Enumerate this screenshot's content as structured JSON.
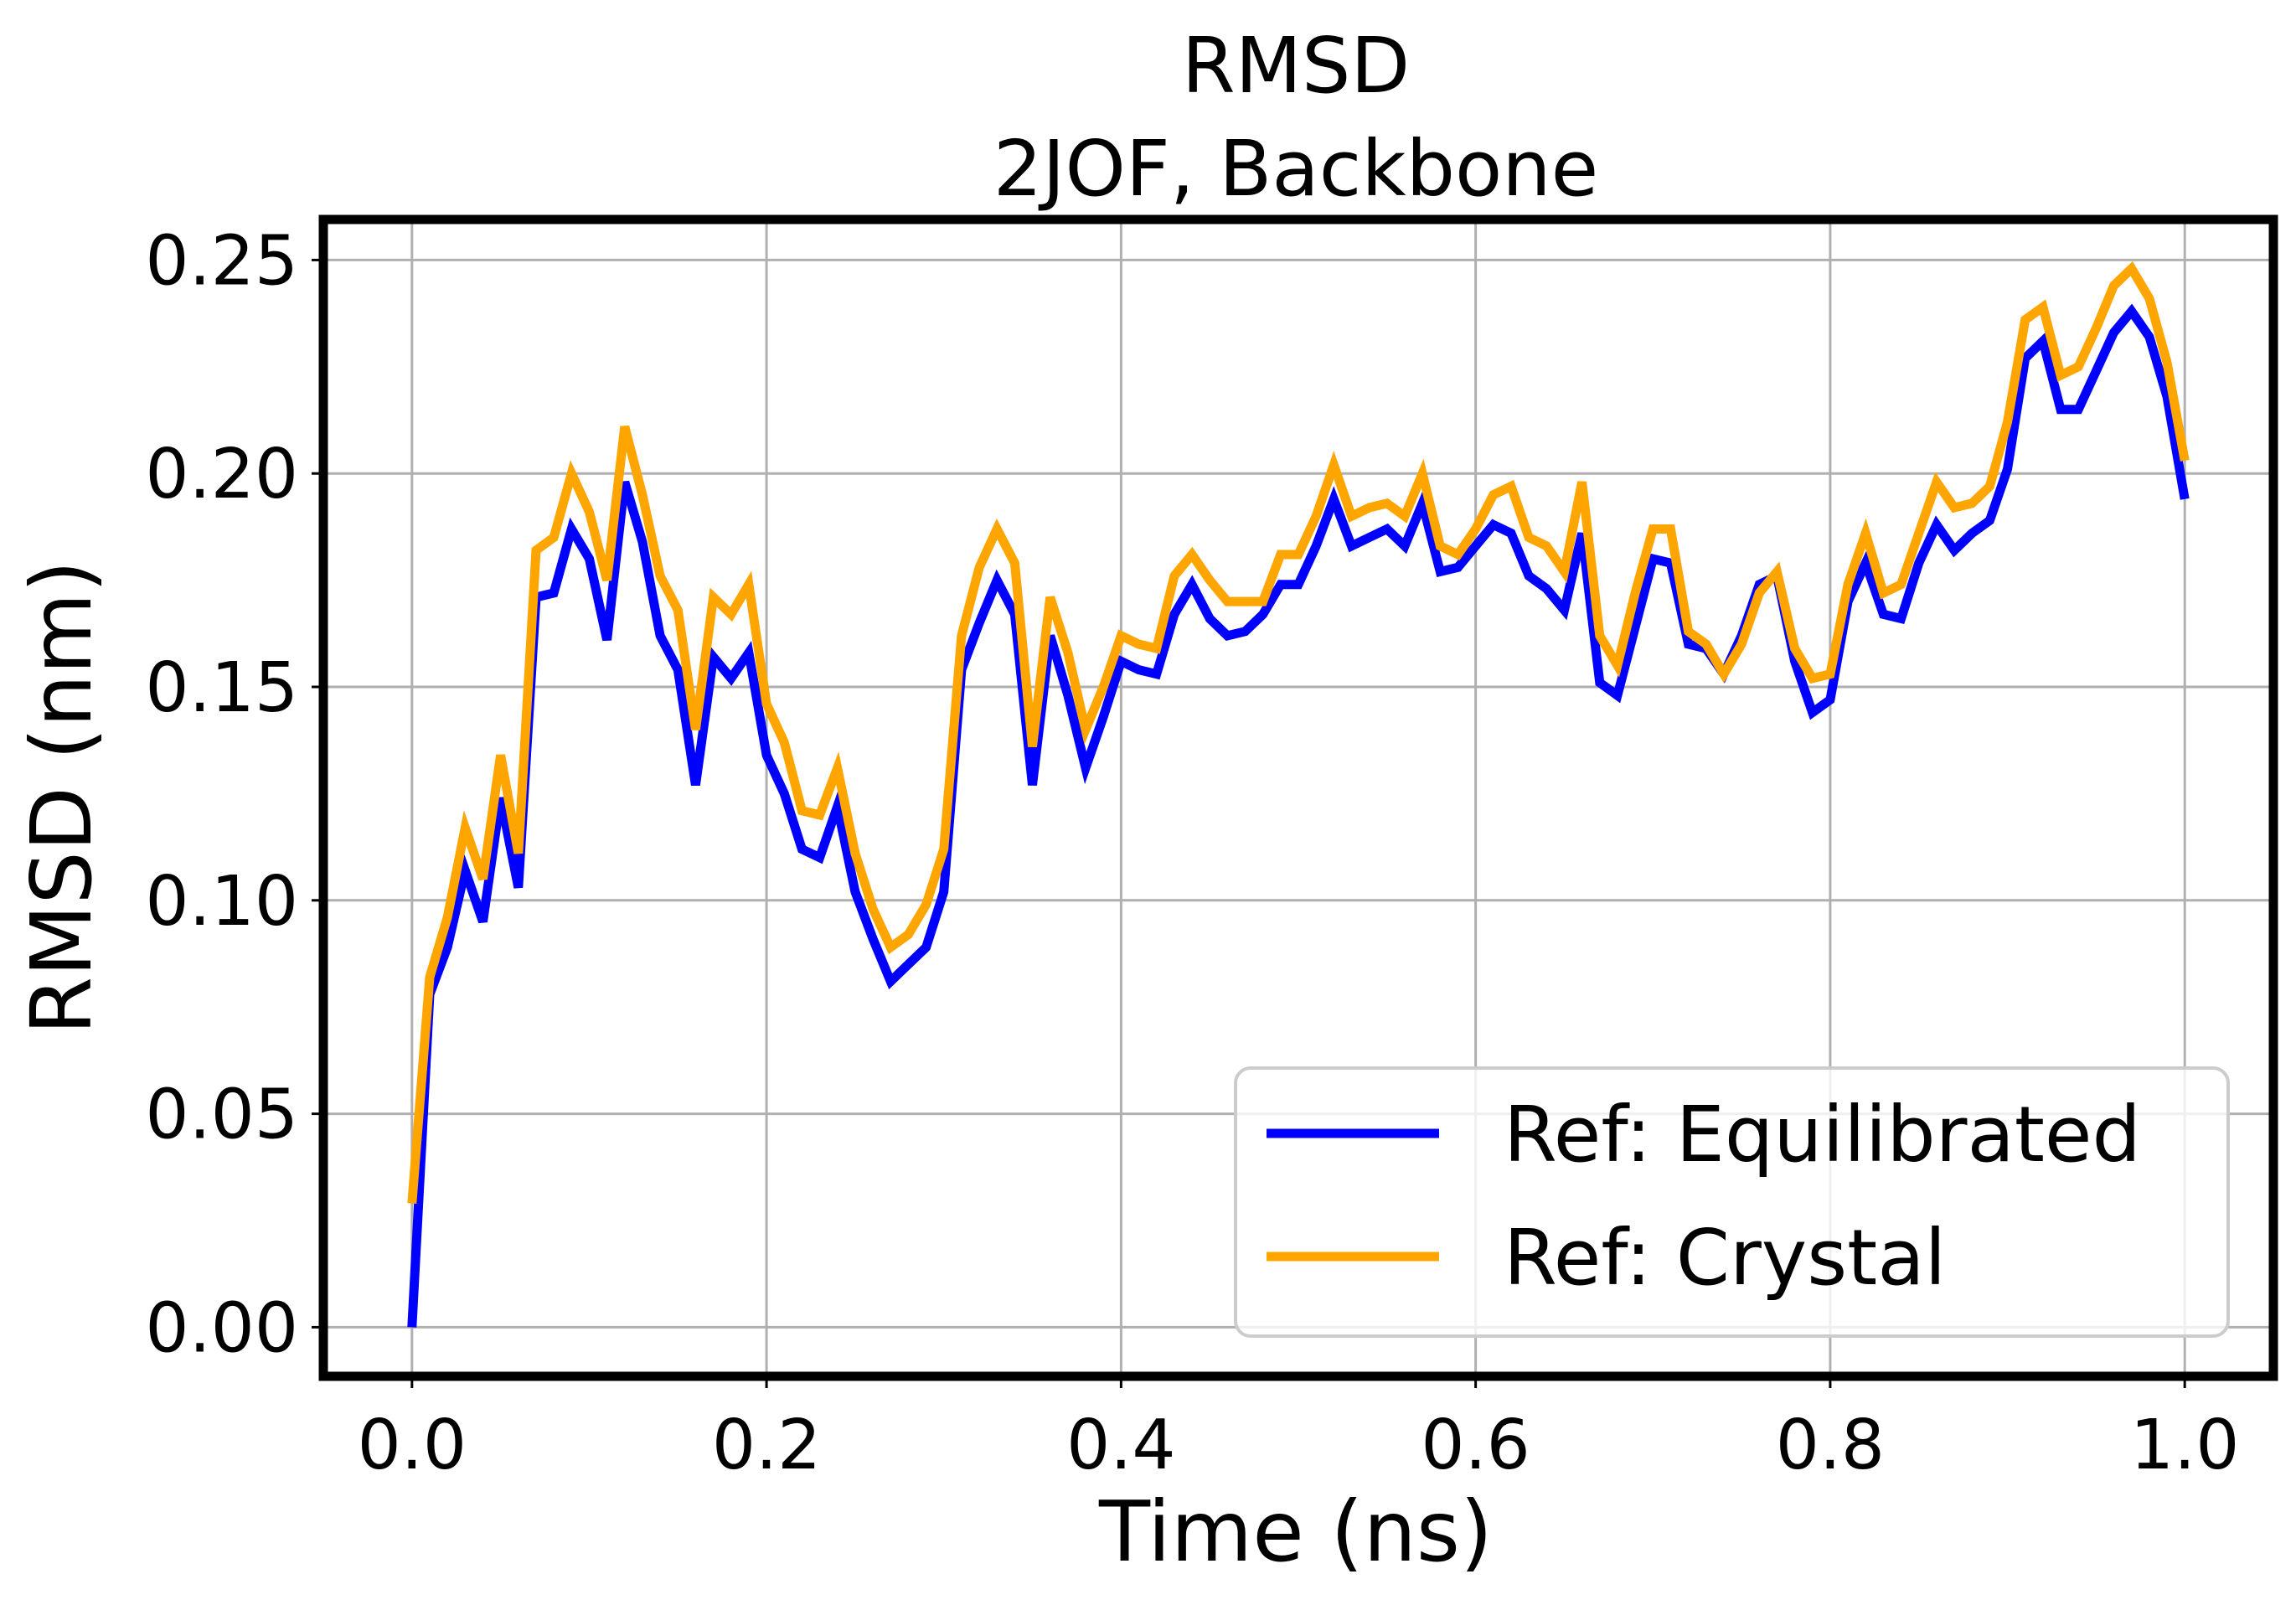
{
  "chart_data": {
    "type": "line",
    "title": "RMSD",
    "subtitle": "2JOF, Backbone",
    "xlabel": "Time (ns)",
    "ylabel": "RMSD (nm)",
    "xlim": [
      -0.05,
      1.05
    ],
    "ylim": [
      -0.0115,
      0.2595
    ],
    "xticks": [
      0.0,
      0.2,
      0.4,
      0.6,
      0.8,
      1.0
    ],
    "xtick_labels": [
      "0.0",
      "0.2",
      "0.4",
      "0.6",
      "0.8",
      "1.0"
    ],
    "yticks": [
      0.0,
      0.05,
      0.1,
      0.15,
      0.2,
      0.25
    ],
    "ytick_labels": [
      "0.00",
      "0.05",
      "0.10",
      "0.15",
      "0.20",
      "0.25"
    ],
    "grid": true,
    "legend_position": "lower-right",
    "x": [
      0.0,
      0.01,
      0.02,
      0.03,
      0.04,
      0.05,
      0.06,
      0.07,
      0.08,
      0.09,
      0.1,
      0.11,
      0.12,
      0.13,
      0.14,
      0.15,
      0.16,
      0.17,
      0.18,
      0.19,
      0.2,
      0.21,
      0.22,
      0.23,
      0.24,
      0.25,
      0.26,
      0.27,
      0.28,
      0.29,
      0.3,
      0.31,
      0.32,
      0.33,
      0.34,
      0.35,
      0.36,
      0.37,
      0.38,
      0.39,
      0.4,
      0.41,
      0.42,
      0.43,
      0.44,
      0.45,
      0.46,
      0.47,
      0.48,
      0.49,
      0.5,
      0.51,
      0.52,
      0.53,
      0.54,
      0.55,
      0.56,
      0.57,
      0.58,
      0.59,
      0.6,
      0.61,
      0.62,
      0.63,
      0.64,
      0.65,
      0.66,
      0.67,
      0.68,
      0.69,
      0.7,
      0.71,
      0.72,
      0.73,
      0.74,
      0.75,
      0.76,
      0.77,
      0.78,
      0.79,
      0.8,
      0.81,
      0.82,
      0.83,
      0.84,
      0.85,
      0.86,
      0.87,
      0.88,
      0.89,
      0.9,
      0.91,
      0.92,
      0.93,
      0.94,
      0.95,
      0.96,
      0.97,
      0.98,
      0.99,
      1.0
    ],
    "series": [
      {
        "name": "Ref: Equilibrated",
        "color": "#0000ff",
        "values": [
          0.0,
          0.078,
          0.089,
          0.107,
          0.095,
          0.124,
          0.103,
          0.171,
          0.172,
          0.187,
          0.18,
          0.161,
          0.198,
          0.184,
          0.162,
          0.154,
          0.127,
          0.157,
          0.152,
          0.158,
          0.134,
          0.125,
          0.112,
          0.11,
          0.122,
          0.102,
          0.091,
          0.081,
          0.085,
          0.089,
          0.102,
          0.154,
          0.165,
          0.175,
          0.167,
          0.127,
          0.162,
          0.148,
          0.131,
          0.143,
          0.156,
          0.154,
          0.153,
          0.167,
          0.174,
          0.166,
          0.162,
          0.163,
          0.167,
          0.174,
          0.174,
          0.183,
          0.194,
          0.183,
          0.185,
          0.187,
          0.183,
          0.193,
          0.177,
          0.178,
          0.183,
          0.188,
          0.186,
          0.176,
          0.173,
          0.168,
          0.186,
          0.151,
          0.148,
          0.164,
          0.18,
          0.179,
          0.16,
          0.159,
          0.153,
          0.162,
          0.174,
          0.176,
          0.156,
          0.144,
          0.147,
          0.17,
          0.179,
          0.167,
          0.166,
          0.179,
          0.188,
          0.182,
          0.186,
          0.189,
          0.201,
          0.227,
          0.231,
          0.215,
          0.215,
          0.224,
          0.233,
          0.238,
          0.232,
          0.218,
          0.194
        ]
      },
      {
        "name": "Ref: Crystal",
        "color": "#ffa500",
        "values": [
          0.029,
          0.082,
          0.096,
          0.117,
          0.105,
          0.134,
          0.111,
          0.182,
          0.185,
          0.2,
          0.191,
          0.175,
          0.211,
          0.195,
          0.176,
          0.168,
          0.14,
          0.171,
          0.167,
          0.174,
          0.146,
          0.137,
          0.121,
          0.12,
          0.131,
          0.111,
          0.098,
          0.089,
          0.092,
          0.099,
          0.112,
          0.162,
          0.178,
          0.187,
          0.179,
          0.136,
          0.171,
          0.158,
          0.14,
          0.15,
          0.162,
          0.16,
          0.159,
          0.176,
          0.181,
          0.175,
          0.17,
          0.17,
          0.17,
          0.181,
          0.181,
          0.19,
          0.202,
          0.19,
          0.192,
          0.193,
          0.19,
          0.2,
          0.183,
          0.181,
          0.187,
          0.195,
          0.197,
          0.185,
          0.183,
          0.177,
          0.198,
          0.162,
          0.155,
          0.172,
          0.187,
          0.187,
          0.163,
          0.16,
          0.153,
          0.16,
          0.172,
          0.177,
          0.159,
          0.152,
          0.153,
          0.174,
          0.186,
          0.172,
          0.174,
          0.186,
          0.198,
          0.192,
          0.193,
          0.197,
          0.212,
          0.236,
          0.239,
          0.223,
          0.225,
          0.234,
          0.244,
          0.248,
          0.241,
          0.226,
          0.203
        ]
      }
    ]
  }
}
